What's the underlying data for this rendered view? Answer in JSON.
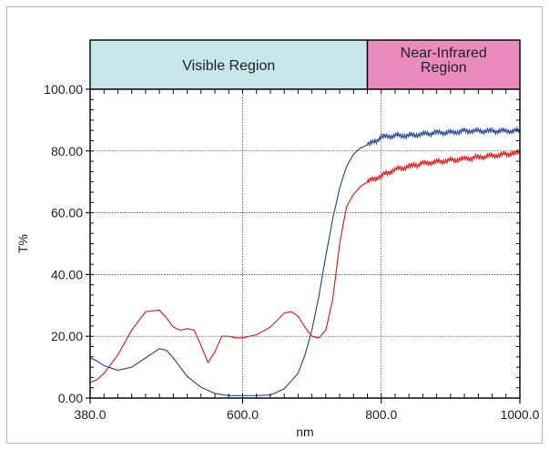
{
  "chart_data": {
    "type": "line",
    "xlabel": "nm",
    "ylabel": "T%",
    "xlim": [
      380,
      1000
    ],
    "ylim": [
      0,
      100
    ],
    "x_ticks": [
      380,
      600,
      800,
      1000
    ],
    "x_tick_labels": [
      "380.0",
      "600.0",
      "800.0",
      "1000.0"
    ],
    "y_ticks": [
      0,
      20,
      40,
      60,
      80,
      100
    ],
    "y_tick_labels": [
      "0.00",
      "20.00",
      "40.00",
      "60.00",
      "80.00",
      "100.00"
    ],
    "grid": true,
    "regions": [
      {
        "label": "Visible Region",
        "from": 380,
        "to": 780,
        "color": "#c6e6ea"
      },
      {
        "label_lines": [
          "Near-Infrared",
          "Region"
        ],
        "from": 780,
        "to": 1000,
        "color": "#e98bbd"
      }
    ],
    "series": [
      {
        "color": "#2e4f9c",
        "x": [
          380,
          390,
          400,
          420,
          440,
          460,
          480,
          490,
          500,
          510,
          520,
          540,
          560,
          580,
          600,
          620,
          640,
          660,
          680,
          690,
          700,
          710,
          720,
          730,
          740,
          750,
          760,
          770,
          780,
          790,
          800,
          820,
          840,
          860,
          880,
          900,
          920,
          940,
          960,
          980,
          1000
        ],
        "values": [
          13,
          12,
          10.5,
          9,
          10,
          13,
          16,
          15.5,
          13,
          10,
          7,
          3.5,
          1.5,
          0.8,
          0.8,
          0.8,
          1,
          3,
          8,
          14,
          22,
          33,
          46,
          58,
          68,
          75,
          79,
          81,
          82,
          83,
          84.5,
          85,
          85,
          85.5,
          86,
          86,
          86.5,
          86.5,
          86.5,
          86.5,
          86.5
        ],
        "ripple": true
      },
      {
        "color": "#e02424",
        "x": [
          380,
          390,
          400,
          420,
          440,
          460,
          480,
          490,
          500,
          510,
          520,
          530,
          540,
          550,
          560,
          570,
          580,
          590,
          600,
          620,
          640,
          660,
          670,
          680,
          690,
          700,
          710,
          720,
          730,
          740,
          750,
          760,
          770,
          780,
          790,
          800,
          820,
          840,
          860,
          880,
          900,
          920,
          940,
          960,
          980,
          1000
        ],
        "values": [
          5,
          6,
          8,
          14,
          22,
          28,
          28.5,
          26,
          23,
          22,
          22.5,
          22,
          17,
          11.5,
          15,
          20,
          20,
          19.5,
          19.5,
          20.5,
          23,
          27.5,
          28,
          26.5,
          23,
          20,
          19.5,
          22,
          32,
          50,
          62,
          66,
          68.5,
          70,
          71,
          72,
          74,
          75,
          76,
          76.5,
          77,
          77.5,
          78,
          78.5,
          79,
          79.5
        ],
        "ripple": true
      }
    ]
  }
}
